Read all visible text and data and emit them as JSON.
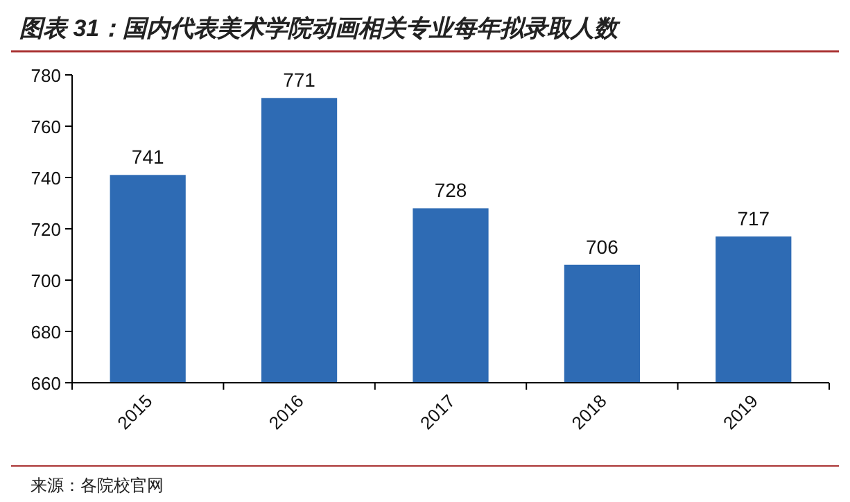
{
  "chart_data": {
    "type": "bar",
    "title": "图表 31：国内代表美术学院动画相关专业每年拟录取人数",
    "categories": [
      "2015",
      "2016",
      "2017",
      "2018",
      "2019"
    ],
    "values": [
      741,
      771,
      728,
      706,
      717
    ],
    "color": "#2e6bb4",
    "ylim": [
      660,
      780
    ],
    "yticks": [
      660,
      680,
      700,
      720,
      740,
      760,
      780
    ],
    "data_labels": true,
    "annotations": [
      "来源：各院校官网"
    ]
  }
}
